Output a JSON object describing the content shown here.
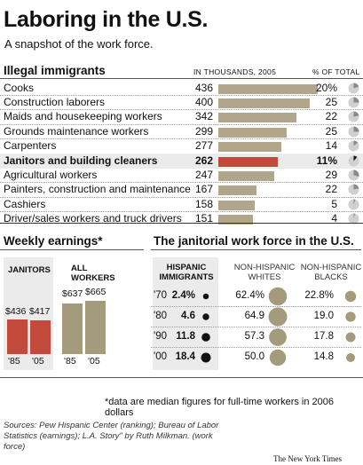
{
  "header": {
    "title": "Laboring in the U.S.",
    "subtitle": "A snapshot of the work force."
  },
  "immigrants": {
    "heading": "Illegal immigrants",
    "col_value": "IN THOUSANDS, 2005",
    "col_pct": "% OF TOTAL"
  },
  "earnings": {
    "heading": "Weekly earnings*",
    "janitors_label": "JANITORS",
    "all_workers_label": "ALL WORKERS",
    "janitors_85": "$436",
    "janitors_05": "$417",
    "all_85": "$637",
    "all_05": "$665",
    "year_85": "'85",
    "year_05": "'05"
  },
  "janitorial": {
    "heading": "The janitorial work force in the U.S.",
    "col_hispanic": "HISPANIC IMMIGRANTS",
    "col_whites": "NON-HISPANIC WHITES",
    "col_blacks": "NON-HISPANIC BLACKS",
    "years": [
      "'70",
      "'80",
      "'90",
      "'00"
    ],
    "hispanic": [
      "2.4%",
      "4.6",
      "11.8",
      "18.4"
    ],
    "whites": [
      "62.4%",
      "64.9",
      "57.3",
      "50.0"
    ],
    "blacks": [
      "22.8%",
      "19.0",
      "17.8",
      "14.8"
    ]
  },
  "footnote": "*data are median figures for full-time workers in 2006 dollars",
  "sources": "Sources: Pew Hispanic Center (ranking); Bureau of Labor Statistics (earnings); L.A. Story\" by Ruth Milkman. (work force)",
  "credit": "The New York Times",
  "colors": {
    "bar": "#b1a58c",
    "highlight_bar": "#c24a3c",
    "highlight_row": "#ebebeb",
    "circle": "#a49a7c"
  },
  "chart_data": [
    {
      "type": "bar",
      "title": "Illegal immigrants",
      "xlabel": "IN THOUSANDS, 2005",
      "categories": [
        "Cooks",
        "Construction laborers",
        "Maids and housekeeping workers",
        "Grounds maintenance workers",
        "Carpenters",
        "Janitors and building cleaners",
        "Agricultural workers",
        "Painters, construction and maintenance",
        "Cashiers",
        "Driver/sales workers and truck drivers"
      ],
      "values": [
        436,
        400,
        342,
        299,
        277,
        262,
        247,
        167,
        158,
        151
      ],
      "values_label": [
        "436",
        "400",
        "342",
        "299",
        "277",
        "262",
        "247",
        "167",
        "158",
        "151"
      ],
      "percent_of_total": [
        20,
        25,
        22,
        25,
        14,
        11,
        29,
        22,
        5,
        4
      ],
      "percent_label": [
        "20%",
        "25",
        "22",
        "25",
        "14",
        "11%",
        "29",
        "22",
        "5",
        "4"
      ],
      "highlight_index": 5,
      "ylim": [
        0,
        436
      ]
    },
    {
      "type": "bar",
      "title": "Weekly earnings*",
      "categories": [
        "'85",
        "'05"
      ],
      "series": [
        {
          "name": "JANITORS",
          "values": [
            436,
            417
          ]
        },
        {
          "name": "ALL WORKERS",
          "values": [
            637,
            665
          ]
        }
      ],
      "ylim": [
        0,
        665
      ]
    },
    {
      "type": "table",
      "title": "The janitorial work force in the U.S.",
      "categories": [
        "'70",
        "'80",
        "'90",
        "'00"
      ],
      "series": [
        {
          "name": "HISPANIC IMMIGRANTS",
          "values": [
            2.4,
            4.6,
            11.8,
            18.4
          ]
        },
        {
          "name": "NON-HISPANIC WHITES",
          "values": [
            62.4,
            64.9,
            57.3,
            50.0
          ]
        },
        {
          "name": "NON-HISPANIC BLACKS",
          "values": [
            22.8,
            19.0,
            17.8,
            14.8
          ]
        }
      ]
    }
  ]
}
